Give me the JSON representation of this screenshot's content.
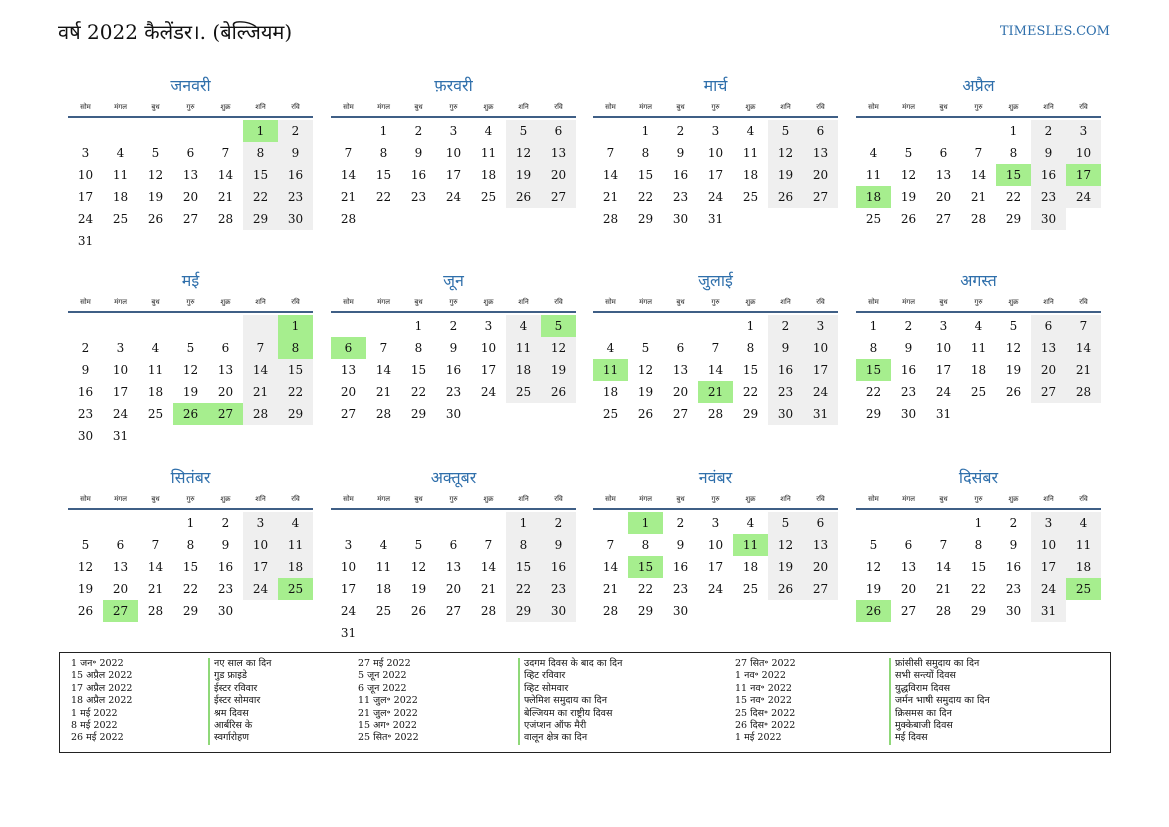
{
  "header": {
    "title": "वर्ष 2022 कैलेंडर।. (बेल्जियम)",
    "site": "TIMESLES.COM"
  },
  "weekdays": [
    "सोम",
    "मंगल",
    "बुध",
    "गुरु",
    "शुक्र",
    "शनि",
    "रवि"
  ],
  "months": [
    {
      "name": "जनवरी",
      "offset": 5,
      "days": 31,
      "holidays": [
        1
      ]
    },
    {
      "name": "फ़रवरी",
      "offset": 1,
      "days": 28,
      "holidays": []
    },
    {
      "name": "मार्च",
      "offset": 1,
      "days": 31,
      "holidays": []
    },
    {
      "name": "अप्रैल",
      "offset": 4,
      "days": 30,
      "holidays": [
        15,
        17,
        18
      ]
    },
    {
      "name": "मई",
      "offset": 6,
      "days": 31,
      "holidays": [
        1,
        8,
        26,
        27
      ]
    },
    {
      "name": "जून",
      "offset": 2,
      "days": 30,
      "holidays": [
        5,
        6
      ]
    },
    {
      "name": "जुलाई",
      "offset": 4,
      "days": 31,
      "holidays": [
        11,
        21
      ]
    },
    {
      "name": "अगस्त",
      "offset": 0,
      "days": 31,
      "holidays": [
        15
      ]
    },
    {
      "name": "सितंबर",
      "offset": 3,
      "days": 30,
      "holidays": [
        25,
        27
      ]
    },
    {
      "name": "अक्तूबर",
      "offset": 5,
      "days": 31,
      "holidays": []
    },
    {
      "name": "नवंबर",
      "offset": 1,
      "days": 30,
      "holidays": [
        1,
        11,
        15
      ]
    },
    {
      "name": "दिसंबर",
      "offset": 3,
      "days": 31,
      "holidays": [
        25,
        26
      ]
    }
  ],
  "holiday_list": {
    "columns": [
      {
        "dates": [
          "1 जन॰ 2022",
          "15 अप्रैल 2022",
          "17 अप्रैल 2022",
          "18 अप्रैल 2022",
          "1 मई 2022",
          "8 मई 2022",
          "26 मई 2022"
        ],
        "names": [
          "नए साल का दिन",
          "गुड फ्राइडे",
          "ईस्टर रविवार",
          "ईस्टर सोमवार",
          "श्रम दिवस",
          "आर्बरिस के",
          "स्वर्गारोहण"
        ]
      },
      {
        "dates": [
          "27 मई 2022",
          "5 जून 2022",
          "6 जून 2022",
          "11 जुल॰ 2022",
          "21 जुल॰ 2022",
          "15 अग॰ 2022",
          "25 सित॰ 2022"
        ],
        "names": [
          "उदगम दिवस के बाद का दिन",
          "व्हिट रविवार",
          "व्हिट सोमवार",
          "फ्लेमिश समुदाय का दिन",
          "बेल्जियम का राष्ट्रीय दिवस",
          "एजंप्शन ऑफ मैरी",
          "वालून क्षेत्र का दिन"
        ]
      },
      {
        "dates": [
          "27 सित॰ 2022",
          "1 नव॰ 2022",
          "11 नव॰ 2022",
          "15 नव॰ 2022",
          "25 दिस॰ 2022",
          "26 दिस॰ 2022",
          "1 मई 2022"
        ],
        "names": [
          "फ्रांसीसी समुदाय का दिन",
          "सभी सन्त्यों दिवस",
          "युद्धविराम दिवस",
          "जर्मन भाषी समुदाय का दिन",
          "क्रिसमस का दिन",
          "मुक्केबाजी दिवस",
          "मई दिवस"
        ]
      }
    ]
  }
}
